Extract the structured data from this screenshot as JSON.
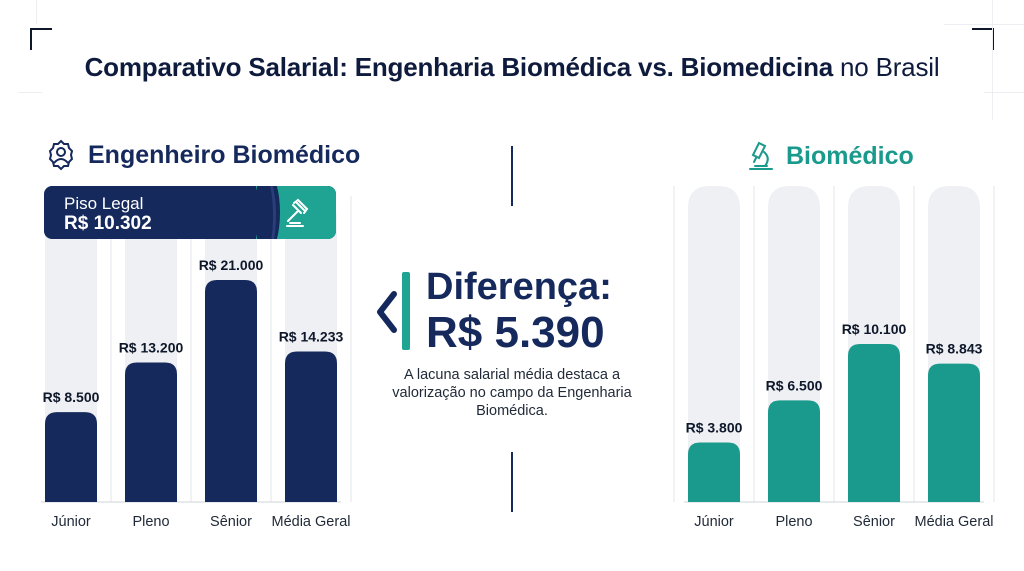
{
  "page": {
    "title_bold": "Comparativo Salarial: Engenharia Biomédica vs. Biomedicina",
    "title_light": " no Brasil"
  },
  "left_panel": {
    "title": "Engenheiro Biomédico",
    "icon": "gear-person-icon",
    "piso_label": "Piso Legal",
    "piso_value": "R$ 10.302",
    "piso_icon": "gavel-icon"
  },
  "right_panel": {
    "title": "Biomédico",
    "icon": "microscope-icon"
  },
  "center": {
    "diff_label": "Diferença:",
    "diff_value": "R$ 5.390",
    "description": "A lacuna salarial média destaca a valorização no campo da Engenharia Biomédica."
  },
  "colors": {
    "navy": "#15295c",
    "teal": "#1a9a8c",
    "track": "#eef0f3"
  },
  "chart_data": [
    {
      "type": "bar",
      "title": "Engenheiro Biomédico",
      "categories": [
        "Júnior",
        "Pleno",
        "Sênior",
        "Média Geral"
      ],
      "values": [
        8500,
        13200,
        21000,
        14233
      ],
      "value_labels": [
        "R$ 8.500",
        "R$ 13.200",
        "R$ 21.000",
        "R$ 14.233"
      ],
      "color": "#15295c",
      "grid": false
    },
    {
      "type": "bar",
      "title": "Biomédico",
      "categories": [
        "Júnior",
        "Pleno",
        "Sênior",
        "Média Geral"
      ],
      "values": [
        3800,
        6500,
        10100,
        8843
      ],
      "value_labels": [
        "R$ 3.800",
        "R$ 6.500",
        "R$ 10.100",
        "R$ 8.843"
      ],
      "color": "#1a9a8c",
      "grid": false
    }
  ]
}
